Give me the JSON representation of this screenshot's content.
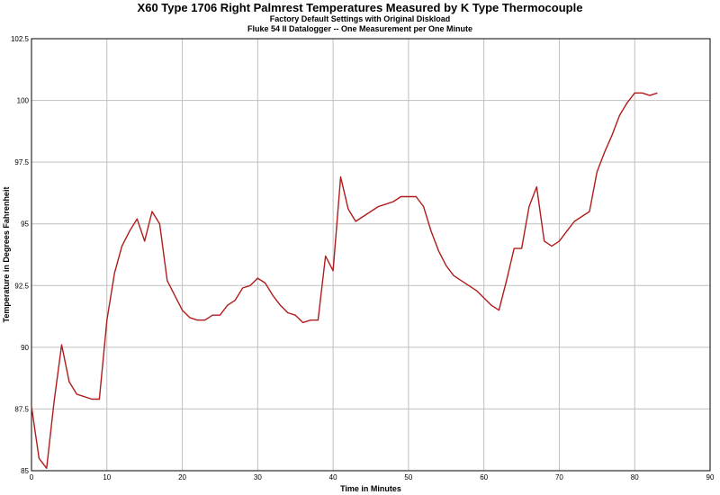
{
  "chart_data": {
    "type": "line",
    "title": "X60 Type 1706  Right Palmrest Temperatures Measured by K Type Thermocouple",
    "subtitles": [
      "Factory Default Settings with Original Diskload",
      "Fluke 54  II Datalogger -- One Measurement per One Minute"
    ],
    "xlabel": "Time in Minutes",
    "ylabel": "Temperature in Degrees Fahrenheit",
    "xlim": [
      0,
      90
    ],
    "ylim": [
      85,
      102.5
    ],
    "x_ticks": [
      0,
      10,
      20,
      30,
      40,
      50,
      60,
      70,
      80,
      90
    ],
    "y_ticks": [
      85,
      87.5,
      90,
      92.5,
      95,
      97.5,
      100,
      102.5
    ],
    "x_tick_labels": [
      "0",
      "10",
      "20",
      "30",
      "40",
      "50",
      "60",
      "70",
      "80",
      "90"
    ],
    "y_tick_labels": [
      "85",
      "87.5",
      "90",
      "92.5",
      "95",
      "97.5",
      "100",
      "102.5"
    ],
    "grid": true,
    "legend": "none",
    "colors": {
      "line": "#b01c1c",
      "grid": "#c0c0c0",
      "axis": "#000000",
      "background": "#ffffff"
    },
    "series": [
      {
        "x": [
          0,
          1,
          2,
          3,
          4,
          5,
          6,
          7,
          8,
          9,
          10,
          11,
          12,
          13,
          14,
          15,
          16,
          17,
          18,
          19,
          20,
          21,
          22,
          23,
          24,
          25,
          26,
          27,
          28,
          29,
          30,
          31,
          32,
          33,
          34,
          35,
          36,
          37,
          38,
          39,
          40,
          41,
          42,
          43,
          44,
          45,
          46,
          47,
          48,
          49,
          50,
          51,
          52,
          53,
          54,
          55,
          56,
          57,
          58,
          59,
          60,
          61,
          62,
          63,
          64,
          65,
          66,
          67,
          68,
          69,
          70,
          71,
          72,
          73,
          74,
          75,
          76,
          77,
          78,
          79,
          80,
          81,
          82,
          83
        ],
        "values": [
          87.6,
          85.5,
          85.1,
          87.8,
          90.1,
          88.6,
          88.1,
          88.0,
          87.9,
          87.9,
          91.1,
          93.0,
          94.1,
          94.7,
          95.2,
          94.3,
          95.5,
          95.0,
          92.7,
          92.1,
          91.5,
          91.2,
          91.1,
          91.1,
          91.3,
          91.3,
          91.7,
          91.9,
          92.4,
          92.5,
          92.8,
          92.6,
          92.1,
          91.7,
          91.4,
          91.3,
          91.0,
          91.1,
          91.1,
          93.7,
          93.1,
          96.9,
          95.6,
          95.1,
          95.3,
          95.5,
          95.7,
          95.8,
          95.9,
          96.1,
          96.1,
          96.1,
          95.7,
          94.7,
          93.9,
          93.3,
          92.9,
          92.7,
          92.5,
          92.3,
          92.0,
          91.7,
          91.5,
          92.7,
          94.0,
          94.0,
          95.7,
          96.5,
          94.3,
          94.1,
          94.3,
          94.7,
          95.1,
          95.3,
          95.5,
          97.1,
          97.9,
          98.6,
          99.4,
          99.9,
          100.3,
          100.3,
          100.2,
          100.3
        ]
      }
    ]
  }
}
